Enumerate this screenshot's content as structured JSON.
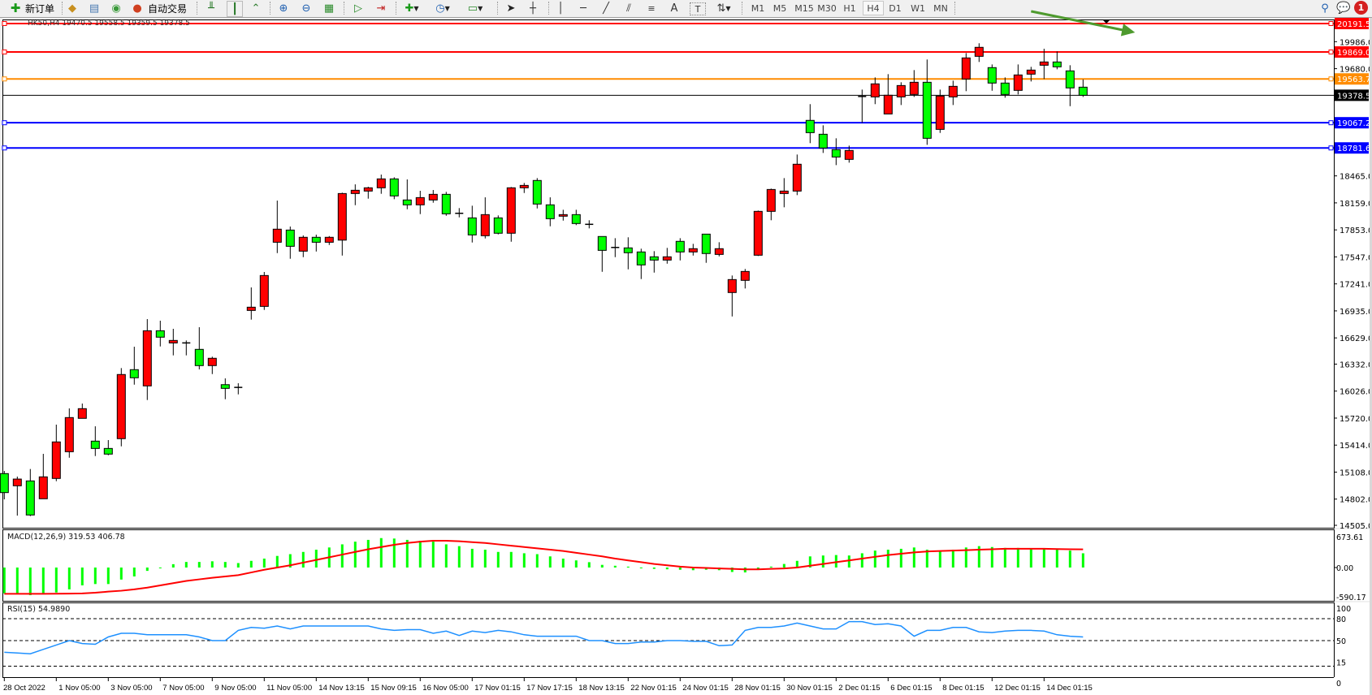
{
  "toolbar": {
    "new_order_label": "新订单",
    "auto_trade_label": "自动交易",
    "text_tool_label": "A",
    "periods": [
      "M1",
      "M5",
      "M15",
      "M30",
      "H1",
      "H4",
      "D1",
      "W1",
      "MN"
    ],
    "selected_period": "H4",
    "notification_count": "1"
  },
  "chart": {
    "header": "HK50,H4  19470.5 19558.5 19359.5 19378.5",
    "colors": {
      "bull": "#FF0000",
      "bear": "#00FF00",
      "wick": "#000000",
      "arrow": "#4E9A2E"
    },
    "price_axis_labels": [
      "19986.0",
      "19680.0",
      "18465.0",
      "18159.0",
      "17853.0",
      "17547.0",
      "17241.0",
      "16935.0",
      "16629.0",
      "16332.0",
      "16026.0",
      "15720.0",
      "15414.0",
      "15108.0",
      "14802.0",
      "14505.0"
    ],
    "levels": [
      {
        "value": "20191.5",
        "color": "#FF0000",
        "label_text_color": "#FFFFFF"
      },
      {
        "value": "19869.0",
        "color": "#FF0000",
        "label_text_color": "#FFFFFF"
      },
      {
        "value": "19563.7",
        "color": "#FF8C00",
        "label_text_color": "#FFFFFF"
      },
      {
        "value": "19378.5",
        "color": "#000000",
        "label_text_color": "#FFFFFF"
      },
      {
        "value": "19067.2",
        "color": "#0000FF",
        "label_text_color": "#FFFFFF"
      },
      {
        "value": "18781.6",
        "color": "#0000FF",
        "label_text_color": "#FFFFFF"
      }
    ],
    "date_labels": [
      "28 Oct 2022",
      "1 Nov 05:00",
      "3 Nov 05:00",
      "7 Nov 05:00",
      "9 Nov 05:00",
      "11 Nov 05:00",
      "14 Nov 13:15",
      "15 Nov 09:15",
      "16 Nov 05:00",
      "17 Nov 01:15",
      "17 Nov 17:15",
      "18 Nov 13:15",
      "22 Nov 01:15",
      "24 Nov 01:15",
      "28 Nov 01:15",
      "30 Nov 01:15",
      "2 Dec 01:15",
      "6 Dec 01:15",
      "8 Dec 01:15",
      "12 Dec 01:15",
      "14 Dec 01:15"
    ]
  },
  "chart_data": {
    "type": "candlestick",
    "symbol": "HK50",
    "timeframe": "H4",
    "ylim": [
      14505.0,
      20191.5
    ],
    "ohlc": [
      [
        15091,
        15121,
        14799,
        14876
      ],
      [
        14953,
        15057,
        14615,
        15029
      ],
      [
        15008,
        15143,
        14609,
        14622
      ],
      [
        14806,
        15315,
        14806,
        15054
      ],
      [
        15036,
        15646,
        15005,
        15450
      ],
      [
        15339,
        15830,
        15271,
        15726
      ],
      [
        15717,
        15885,
        15717,
        15827
      ],
      [
        15459,
        15627,
        15290,
        15376
      ],
      [
        15376,
        15471,
        15299,
        15312
      ],
      [
        15487,
        16287,
        15400,
        16214
      ],
      [
        16269,
        16529,
        16099,
        16177
      ],
      [
        16085,
        16842,
        15925,
        16710
      ],
      [
        16710,
        16824,
        16532,
        16637
      ],
      [
        16572,
        16732,
        16431,
        16600
      ],
      [
        16569,
        16600,
        16431,
        16572
      ],
      [
        16499,
        16750,
        16272,
        16315
      ],
      [
        16315,
        16416,
        16219,
        16398
      ],
      [
        16099,
        16170,
        15934,
        16057
      ],
      [
        16063,
        16115,
        15989,
        16068
      ],
      [
        16940,
        17201,
        16836,
        16977
      ],
      [
        16986,
        17376,
        16946,
        17336
      ],
      [
        17713,
        18185,
        17590,
        17861
      ],
      [
        17851,
        17891,
        17526,
        17667
      ],
      [
        17612,
        17790,
        17544,
        17769
      ],
      [
        17769,
        17799,
        17608,
        17713
      ],
      [
        17713,
        17783,
        17682,
        17769
      ],
      [
        17737,
        18275,
        17562,
        18265
      ],
      [
        18265,
        18369,
        18133,
        18302
      ],
      [
        18293,
        18342,
        18207,
        18330
      ],
      [
        18330,
        18480,
        18262,
        18431
      ],
      [
        18431,
        18449,
        18201,
        18238
      ],
      [
        18192,
        18425,
        18087,
        18137
      ],
      [
        18137,
        18296,
        18032,
        18219
      ],
      [
        18192,
        18305,
        18161,
        18256
      ],
      [
        18256,
        18284,
        18013,
        18035
      ],
      [
        18041,
        18100,
        17995,
        18035
      ],
      [
        17989,
        18127,
        17710,
        17796
      ],
      [
        17787,
        18222,
        17756,
        18026
      ],
      [
        17989,
        18017,
        17802,
        17815
      ],
      [
        17815,
        18339,
        17719,
        18330
      ],
      [
        18330,
        18385,
        18271,
        18357
      ],
      [
        18413,
        18440,
        18096,
        18146
      ],
      [
        18137,
        18222,
        17894,
        17980
      ],
      [
        18008,
        18081,
        17958,
        18026
      ],
      [
        18026,
        18081,
        17907,
        17925
      ],
      [
        17912,
        17962,
        17870,
        17916
      ],
      [
        17778,
        17778,
        17378,
        17621
      ],
      [
        17654,
        17759,
        17544,
        17650
      ],
      [
        17649,
        17769,
        17406,
        17594
      ],
      [
        17603,
        17640,
        17296,
        17456
      ],
      [
        17548,
        17612,
        17369,
        17511
      ],
      [
        17511,
        17649,
        17470,
        17548
      ],
      [
        17723,
        17759,
        17507,
        17603
      ],
      [
        17603,
        17695,
        17562,
        17640
      ],
      [
        17805,
        17805,
        17480,
        17585
      ],
      [
        17575,
        17713,
        17553,
        17640
      ],
      [
        17143,
        17336,
        16872,
        17290
      ],
      [
        17281,
        17410,
        17189,
        17382
      ],
      [
        17566,
        18072,
        17557,
        18063
      ],
      [
        18063,
        18321,
        17962,
        18311
      ],
      [
        18265,
        18440,
        18109,
        18293
      ],
      [
        18293,
        18707,
        18247,
        18597
      ],
      [
        19094,
        19278,
        18836,
        18955
      ],
      [
        18937,
        19038,
        18725,
        18781
      ],
      [
        18762,
        18891,
        18587,
        18679
      ],
      [
        18652,
        18808,
        18615,
        18753
      ],
      [
        19360,
        19443,
        19066,
        19365
      ],
      [
        19360,
        19581,
        19278,
        19508
      ],
      [
        19167,
        19618,
        19167,
        19379
      ],
      [
        19360,
        19526,
        19268,
        19489
      ],
      [
        19388,
        19664,
        19360,
        19526
      ],
      [
        19526,
        19784,
        18817,
        18891
      ],
      [
        18992,
        19443,
        18952,
        19370
      ],
      [
        19360,
        19544,
        19268,
        19480
      ],
      [
        19563,
        19857,
        19425,
        19802
      ],
      [
        19820,
        19968,
        19756,
        19922
      ],
      [
        19692,
        19728,
        19430,
        19517
      ],
      [
        19517,
        19581,
        19351,
        19388
      ],
      [
        19434,
        19728,
        19388,
        19609
      ],
      [
        19618,
        19701,
        19535,
        19664
      ],
      [
        19719,
        19906,
        19563,
        19756
      ],
      [
        19756,
        19876,
        19673,
        19701
      ],
      [
        19655,
        19719,
        19255,
        19462
      ],
      [
        19470.5,
        19558.5,
        19359.5,
        19378.5
      ]
    ],
    "trend_arrow": {
      "from": {
        "candle": 79,
        "price": 20330
      },
      "to": {
        "candle": 87,
        "price": 20090
      }
    },
    "macd": {
      "label": "MACD(12,26,9) 319.53 406.78",
      "axis_labels": [
        "673.61",
        "0.00",
        "-590.17"
      ],
      "ylim": [
        -590.17,
        673.61
      ],
      "histogram": [
        -580,
        -580,
        -620,
        -580,
        -560,
        -490,
        -400,
        -370,
        -370,
        -270,
        -200,
        -75,
        -10,
        75,
        125,
        125,
        140,
        125,
        100,
        150,
        200,
        260,
        300,
        350,
        400,
        450,
        520,
        580,
        620,
        660,
        650,
        620,
        600,
        580,
        520,
        480,
        420,
        400,
        350,
        350,
        320,
        300,
        250,
        200,
        160,
        120,
        60,
        40,
        20,
        -10,
        -30,
        -40,
        -50,
        -60,
        -50,
        -60,
        -100,
        -110,
        -40,
        20,
        80,
        150,
        250,
        270,
        280,
        270,
        320,
        380,
        400,
        420,
        450,
        400,
        380,
        400,
        450,
        480,
        460,
        440,
        440,
        430,
        430,
        420,
        380,
        319.53
      ],
      "signal": [
        -590,
        -590,
        -590,
        -590,
        -588,
        -584,
        -580,
        -565,
        -540,
        -520,
        -490,
        -450,
        -400,
        -350,
        -300,
        -265,
        -230,
        -200,
        -170,
        -110,
        -50,
        0,
        50,
        110,
        170,
        230,
        290,
        350,
        410,
        460,
        510,
        550,
        580,
        600,
        600,
        590,
        570,
        550,
        520,
        490,
        460,
        430,
        400,
        370,
        330,
        290,
        250,
        200,
        160,
        120,
        80,
        50,
        20,
        0,
        -10,
        -20,
        -30,
        -40,
        -40,
        -30,
        -20,
        0,
        40,
        80,
        120,
        160,
        200,
        240,
        280,
        310,
        340,
        360,
        370,
        380,
        390,
        400,
        410,
        420,
        420,
        420,
        420,
        415,
        410,
        406.78
      ]
    },
    "rsi": {
      "label": "RSI(15) 54.9890",
      "axis_labels": [
        "100",
        "80",
        "50",
        "15",
        "0"
      ],
      "levels": [
        80,
        50,
        15
      ],
      "values": [
        34,
        33,
        32,
        38,
        44,
        50,
        46,
        45,
        55,
        60,
        60,
        58,
        58,
        58,
        58,
        55,
        50,
        50,
        64,
        68,
        67,
        70,
        66,
        70,
        70,
        70,
        70,
        70,
        70,
        66,
        64,
        65,
        65,
        60,
        63,
        57,
        63,
        61,
        64,
        62,
        58,
        56,
        56,
        56,
        56,
        50,
        50,
        46,
        46,
        48,
        48,
        50,
        50,
        49,
        49,
        43,
        44,
        64,
        68,
        68,
        70,
        74,
        70,
        66,
        66,
        76,
        76,
        72,
        73,
        70,
        56,
        64,
        64,
        68,
        68,
        62,
        61,
        63,
        64,
        64,
        63,
        58,
        56,
        54.989
      ]
    }
  }
}
